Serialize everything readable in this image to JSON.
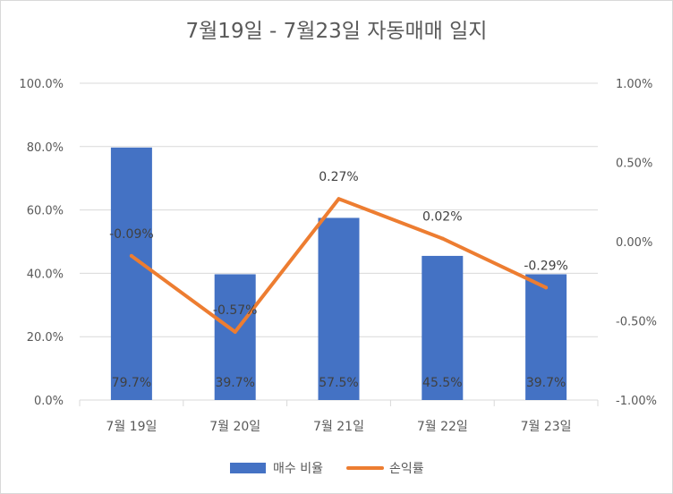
{
  "chart_data": {
    "type": "bar+line",
    "title": "7월19일 - 7월23일 자동매매 일지",
    "categories": [
      "7월 19일",
      "7월 20일",
      "7월 21일",
      "7월 22일",
      "7월 23일"
    ],
    "series": [
      {
        "name": "매수 비율",
        "type": "bar",
        "axis": "left",
        "values": [
          79.7,
          39.7,
          57.5,
          45.5,
          39.7
        ],
        "labels": [
          "79.7%",
          "39.7%",
          "57.5%",
          "45.5%",
          "39.7%"
        ],
        "color": "#4472c4"
      },
      {
        "name": "손익률",
        "type": "line",
        "axis": "right",
        "values": [
          -0.09,
          -0.57,
          0.27,
          0.02,
          -0.29
        ],
        "labels": [
          "-0.09%",
          "-0.57%",
          "0.27%",
          "0.02%",
          "-0.29%"
        ],
        "color": "#ed7d31"
      }
    ],
    "y_left": {
      "min": 0,
      "max": 100,
      "ticks": [
        0,
        20,
        40,
        60,
        80,
        100
      ],
      "tick_labels": [
        "0.0%",
        "20.0%",
        "40.0%",
        "60.0%",
        "80.0%",
        "100.0%"
      ]
    },
    "y_right": {
      "min": -1,
      "max": 1,
      "ticks": [
        -1,
        -0.5,
        0,
        0.5,
        1
      ],
      "tick_labels": [
        "-1.00%",
        "-0.50%",
        "0.00%",
        "0.50%",
        "1.00%"
      ]
    },
    "grid": true,
    "legend": "bottom",
    "gridline_color": "#d9d9d9",
    "text_color": "#595959"
  }
}
